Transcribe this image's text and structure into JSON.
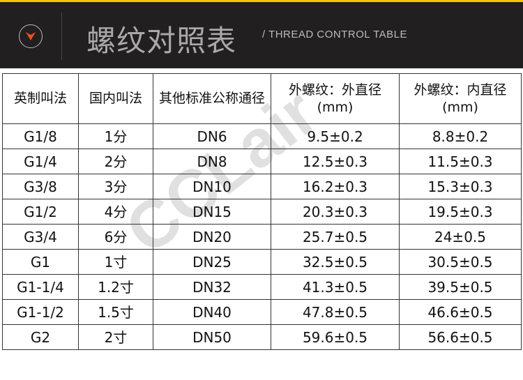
{
  "header": {
    "title": "螺纹对照表",
    "subtitle": "/ THREAD CONTROL TABLE",
    "icon": "chevron-down-circle-icon",
    "accent": "#f24e1e",
    "top_line_color": "#f5c400"
  },
  "watermark": "CCLair",
  "table": {
    "headers": [
      "英制叫法",
      "国内叫法",
      "其他标准公称通径",
      "外螺纹：外直径(mm)",
      "外螺纹：内直径(mm)"
    ],
    "rows": [
      [
        "G1/8",
        "1分",
        "DN6",
        "9.5±0.2",
        "8.8±0.2"
      ],
      [
        "G1/4",
        "2分",
        "DN8",
        "12.5±0.3",
        "11.5±0.3"
      ],
      [
        "G3/8",
        "3分",
        "DN10",
        "16.2±0.3",
        "15.3±0.3"
      ],
      [
        "G1/2",
        "4分",
        "DN15",
        "20.3±0.3",
        "19.5±0.3"
      ],
      [
        "G3/4",
        "6分",
        "DN20",
        "25.7±0.5",
        "24±0.5"
      ],
      [
        "G1",
        "1寸",
        "DN25",
        "32.5±0.5",
        "30.5±0.5"
      ],
      [
        "G1-1/4",
        "1.2寸",
        "DN32",
        "41.3±0.5",
        "39.5±0.5"
      ],
      [
        "G1-1/2",
        "1.5寸",
        "DN40",
        "47.8±0.5",
        "46.6±0.5"
      ],
      [
        "G2",
        "2寸",
        "DN50",
        "59.6±0.5",
        "56.6±0.5"
      ]
    ]
  }
}
